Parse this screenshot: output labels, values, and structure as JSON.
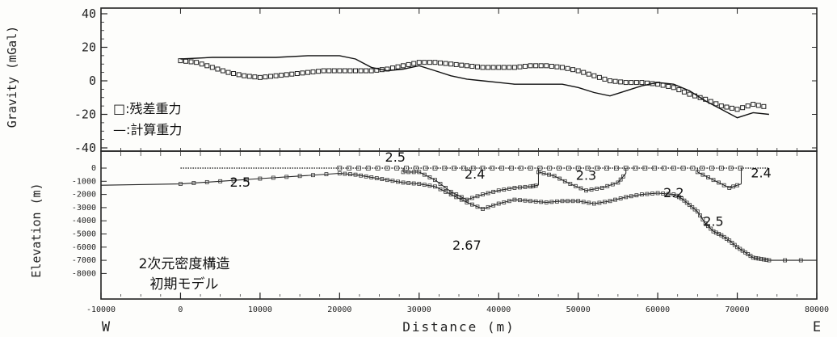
{
  "chart_data": [
    {
      "type": "scatter",
      "panel": "gravity",
      "ylabel": "Gravity (mGal)",
      "ylim": [
        -40,
        40
      ],
      "xlim": [
        -10000,
        80000
      ],
      "ytick_labels": [
        "40",
        "20",
        "0",
        "-20",
        "-40"
      ],
      "ytick_values": [
        40,
        20,
        0,
        -20,
        -40
      ],
      "legend": {
        "placement": "left",
        "items": [
          "□:残差重力",
          "—:計算重力"
        ]
      },
      "series": [
        {
          "name": "残差重力",
          "style": "squares",
          "x": [
            0,
            2000,
            4000,
            6000,
            8000,
            10000,
            12000,
            14000,
            16000,
            18000,
            20000,
            22000,
            24000,
            26000,
            28000,
            30000,
            32000,
            34000,
            36000,
            38000,
            40000,
            42000,
            44000,
            46000,
            48000,
            50000,
            52000,
            54000,
            56000,
            58000,
            60000,
            62000,
            64000,
            66000,
            68000,
            70000,
            72000,
            74000
          ],
          "y": [
            12,
            11,
            8,
            5,
            3,
            2,
            3,
            4,
            5,
            6,
            6,
            6,
            6,
            7,
            9,
            11,
            11,
            10,
            9,
            8,
            8,
            8,
            9,
            9,
            8,
            6,
            3,
            0,
            -1,
            -1,
            -2,
            -4,
            -8,
            -11,
            -15,
            -17,
            -14,
            -16
          ]
        },
        {
          "name": "計算重力",
          "style": "line",
          "x": [
            0,
            4000,
            8000,
            12000,
            16000,
            20000,
            22000,
            24000,
            26000,
            28000,
            30000,
            32000,
            34000,
            36000,
            38000,
            40000,
            42000,
            44000,
            46000,
            48000,
            50000,
            52000,
            54000,
            56000,
            58000,
            60000,
            62000,
            64000,
            66000,
            68000,
            70000,
            72000,
            74000
          ],
          "y": [
            13,
            14,
            14,
            14,
            15,
            15,
            13,
            8,
            6,
            7,
            9,
            6,
            3,
            1,
            0,
            -1,
            -2,
            -2,
            -2,
            -2,
            -4,
            -7,
            -9,
            -6,
            -3,
            -1,
            -2,
            -6,
            -12,
            -17,
            -22,
            -19,
            -20
          ]
        }
      ]
    },
    {
      "type": "area",
      "panel": "density-model",
      "ylabel": "Elevation (m)",
      "xlabel": "Distance (m)",
      "xlim": [
        -10000,
        80000
      ],
      "ylim": [
        -8000,
        1000
      ],
      "xtick_labels": [
        "-10000",
        "0",
        "10000",
        "20000",
        "30000",
        "40000",
        "50000",
        "60000",
        "70000",
        "80000"
      ],
      "xtick_values": [
        -10000,
        0,
        10000,
        20000,
        30000,
        40000,
        50000,
        60000,
        70000,
        80000
      ],
      "ytick_labels": [
        "0",
        "-1000",
        "-2000",
        "-3000",
        "-4000",
        "-5000",
        "-6000",
        "-7000",
        "-8000"
      ],
      "ytick_values": [
        0,
        -1000,
        -2000,
        -3000,
        -4000,
        -5000,
        -6000,
        -7000,
        -8000
      ],
      "direction_labels": [
        "W",
        "E"
      ],
      "title_lines": [
        "2次元密度構造",
        "初期モデル"
      ],
      "density_labels": [
        {
          "text": "2.5",
          "x": 7500,
          "y": -1400
        },
        {
          "text": "2.5",
          "x": 27000,
          "y": 500
        },
        {
          "text": "2.4",
          "x": 37000,
          "y": -800
        },
        {
          "text": "2.3",
          "x": 51000,
          "y": -900
        },
        {
          "text": "2.2",
          "x": 62000,
          "y": -2200
        },
        {
          "text": "2.5",
          "x": 67000,
          "y": -4400
        },
        {
          "text": "2.4",
          "x": 73000,
          "y": -700
        },
        {
          "text": "2.67",
          "x": 36000,
          "y": -6200
        }
      ],
      "surface": {
        "x": [
          0,
          74000
        ],
        "y": [
          0,
          0
        ]
      },
      "series": [
        {
          "name": "2.5-2.67 boundary",
          "x": [
            -10000,
            0,
            5000,
            10000,
            15000,
            20000,
            22000,
            24000,
            26000,
            28000,
            30000,
            32000,
            34000,
            36000,
            38000,
            40000,
            42000,
            44000,
            46000,
            48000,
            50000,
            52000,
            54000,
            56000,
            58000,
            60000,
            62000,
            63000,
            64000,
            65000,
            66000,
            67000,
            68000,
            69000,
            70000,
            71000,
            72000,
            73000,
            74000,
            80000
          ],
          "y": [
            -1300,
            -1200,
            -1000,
            -800,
            -600,
            -400,
            -500,
            -700,
            -900,
            -1100,
            -1200,
            -1400,
            -2000,
            -2600,
            -3100,
            -2700,
            -2400,
            -2500,
            -2600,
            -2500,
            -2500,
            -2700,
            -2500,
            -2200,
            -2000,
            -1900,
            -2000,
            -2300,
            -2800,
            -3300,
            -4200,
            -4800,
            -5100,
            -5500,
            -6000,
            -6400,
            -6800,
            -6900,
            -7000,
            -7000
          ]
        },
        {
          "name": "2.4 body base",
          "x": [
            28000,
            30000,
            32000,
            34000,
            36000,
            38000,
            40000,
            42000,
            44000,
            45000
          ],
          "y": [
            -300,
            -300,
            -900,
            -1800,
            -2400,
            -2000,
            -1700,
            -1500,
            -1400,
            -1300
          ]
        },
        {
          "name": "2.3 body base",
          "x": [
            45000,
            47000,
            49000,
            51000,
            53000,
            55000,
            56000
          ],
          "y": [
            -300,
            -600,
            -1200,
            -1700,
            -1500,
            -1100,
            -400
          ]
        },
        {
          "name": "2.4 east body base",
          "x": [
            65000,
            67000,
            69000,
            70500
          ],
          "y": [
            -300,
            -900,
            -1500,
            -1200
          ]
        }
      ]
    }
  ]
}
